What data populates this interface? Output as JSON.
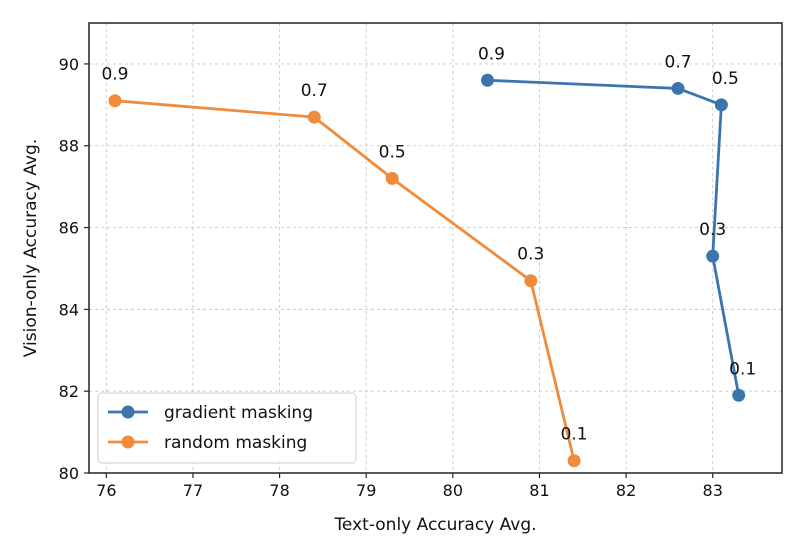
{
  "chart_data": {
    "type": "line",
    "xlabel": "Text-only Accuracy Avg.",
    "ylabel": "Vision-only Accuracy Avg.",
    "xlim": [
      75.8,
      83.8
    ],
    "ylim": [
      80,
      91
    ],
    "xticks": [
      "76",
      "77",
      "78",
      "79",
      "80",
      "81",
      "82",
      "83"
    ],
    "yticks": [
      "80",
      "82",
      "84",
      "86",
      "88",
      "90"
    ],
    "grid": true,
    "legend_position": "lower-left",
    "series": [
      {
        "name": "gradient masking",
        "color": "#3a76ad",
        "points": [
          {
            "x": 80.4,
            "y": 89.6,
            "label": "0.9"
          },
          {
            "x": 82.6,
            "y": 89.4,
            "label": "0.7"
          },
          {
            "x": 83.1,
            "y": 89.0,
            "label": "0.5"
          },
          {
            "x": 83.0,
            "y": 85.3,
            "label": "0.3"
          },
          {
            "x": 83.3,
            "y": 81.9,
            "label": "0.1"
          }
        ]
      },
      {
        "name": "random masking",
        "color": "#ef8b3a",
        "points": [
          {
            "x": 76.1,
            "y": 89.1,
            "label": "0.9"
          },
          {
            "x": 78.4,
            "y": 88.7,
            "label": "0.7"
          },
          {
            "x": 79.3,
            "y": 87.2,
            "label": "0.5"
          },
          {
            "x": 80.9,
            "y": 84.7,
            "label": "0.3"
          },
          {
            "x": 81.4,
            "y": 80.3,
            "label": "0.1"
          }
        ]
      }
    ]
  }
}
